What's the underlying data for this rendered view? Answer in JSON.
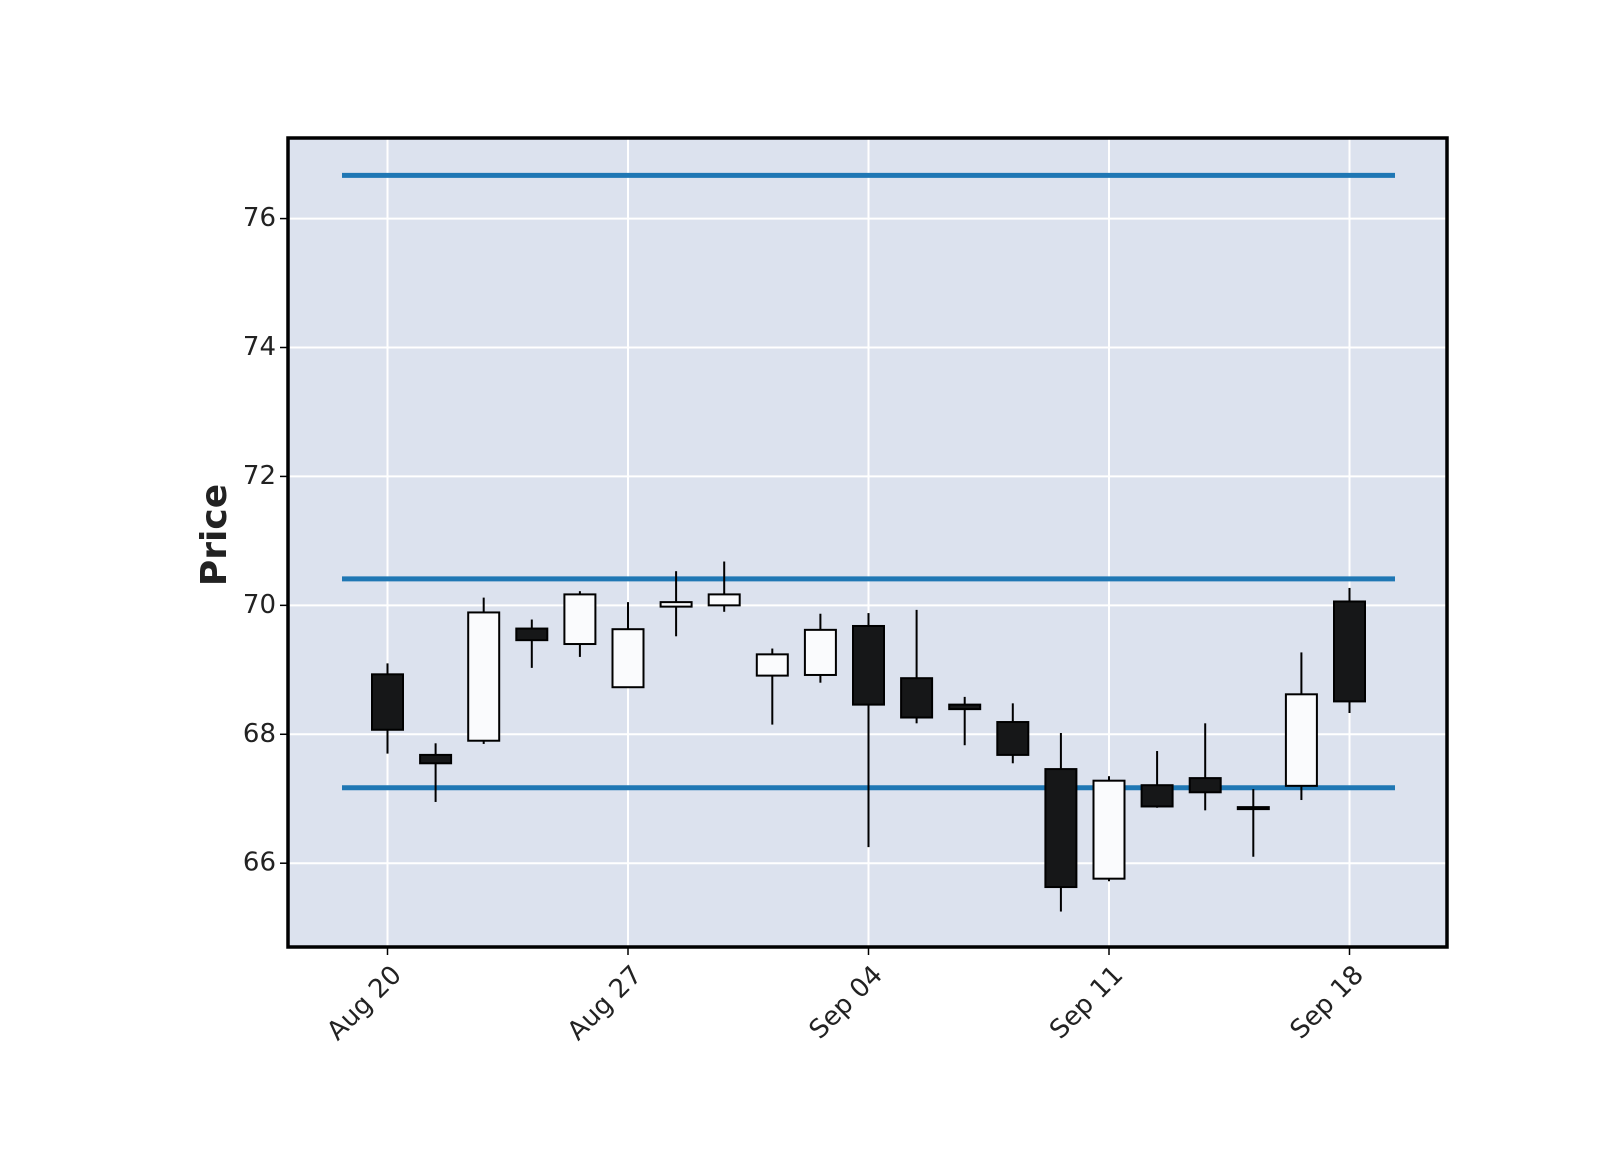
{
  "chart_data": {
    "type": "candlestick",
    "title": "",
    "xlabel": "",
    "ylabel": "Price",
    "ylim": [
      64.7,
      77.25
    ],
    "grid": true,
    "colors": {
      "plot_background": "#dce2ee",
      "grid": "#ffffff",
      "up_body": "#fafbfd",
      "down_body": "#161718",
      "wick": "#000000",
      "hline": "#1f77b4",
      "frame": "#000000"
    },
    "x_ticks": [
      {
        "label": "Aug 20",
        "date": "2018-08-20"
      },
      {
        "label": "Aug 27",
        "date": "2018-08-27"
      },
      {
        "label": "Sep 04",
        "date": "2018-09-04"
      },
      {
        "label": "Sep 11",
        "date": "2018-09-11"
      },
      {
        "label": "Sep 18",
        "date": "2018-09-18"
      }
    ],
    "y_ticks": [
      66,
      68,
      70,
      72,
      74,
      76
    ],
    "hlines": [
      76.67,
      70.41,
      67.17
    ],
    "candles": [
      {
        "date": "2018-08-20",
        "open": 68.93,
        "high": 69.1,
        "low": 67.7,
        "close": 68.07
      },
      {
        "date": "2018-08-21",
        "open": 67.68,
        "high": 67.86,
        "low": 66.95,
        "close": 67.55
      },
      {
        "date": "2018-08-22",
        "open": 67.9,
        "high": 70.12,
        "low": 67.85,
        "close": 69.89
      },
      {
        "date": "2018-08-23",
        "open": 69.64,
        "high": 69.78,
        "low": 69.03,
        "close": 69.46
      },
      {
        "date": "2018-08-24",
        "open": 69.4,
        "high": 70.22,
        "low": 69.2,
        "close": 70.17
      },
      {
        "date": "2018-08-27",
        "open": 68.73,
        "high": 70.05,
        "low": 68.72,
        "close": 69.63
      },
      {
        "date": "2018-08-28",
        "open": 69.98,
        "high": 70.53,
        "low": 69.52,
        "close": 70.05
      },
      {
        "date": "2018-08-29",
        "open": 70.0,
        "high": 70.68,
        "low": 69.9,
        "close": 70.17
      },
      {
        "date": "2018-08-30",
        "open": 68.91,
        "high": 69.33,
        "low": 68.15,
        "close": 69.24
      },
      {
        "date": "2018-08-31",
        "open": 68.92,
        "high": 69.87,
        "low": 68.8,
        "close": 69.62
      },
      {
        "date": "2018-09-04",
        "open": 69.68,
        "high": 69.88,
        "low": 66.25,
        "close": 68.46
      },
      {
        "date": "2018-09-05",
        "open": 68.87,
        "high": 69.93,
        "low": 68.17,
        "close": 68.26
      },
      {
        "date": "2018-09-06",
        "open": 68.46,
        "high": 68.58,
        "low": 67.83,
        "close": 68.39
      },
      {
        "date": "2018-09-07",
        "open": 68.19,
        "high": 68.48,
        "low": 67.55,
        "close": 67.68
      },
      {
        "date": "2018-09-10",
        "open": 67.46,
        "high": 68.02,
        "low": 65.25,
        "close": 65.63
      },
      {
        "date": "2018-09-11",
        "open": 65.76,
        "high": 67.35,
        "low": 65.72,
        "close": 67.28
      },
      {
        "date": "2018-09-12",
        "open": 67.21,
        "high": 67.74,
        "low": 66.86,
        "close": 66.88
      },
      {
        "date": "2018-09-13",
        "open": 67.32,
        "high": 68.17,
        "low": 66.82,
        "close": 67.1
      },
      {
        "date": "2018-09-14",
        "open": 66.87,
        "high": 67.15,
        "low": 66.1,
        "close": 66.84
      },
      {
        "date": "2018-09-17",
        "open": 67.2,
        "high": 69.27,
        "low": 66.98,
        "close": 68.62
      },
      {
        "date": "2018-09-18",
        "open": 70.06,
        "high": 70.27,
        "low": 68.33,
        "close": 68.51
      }
    ]
  }
}
